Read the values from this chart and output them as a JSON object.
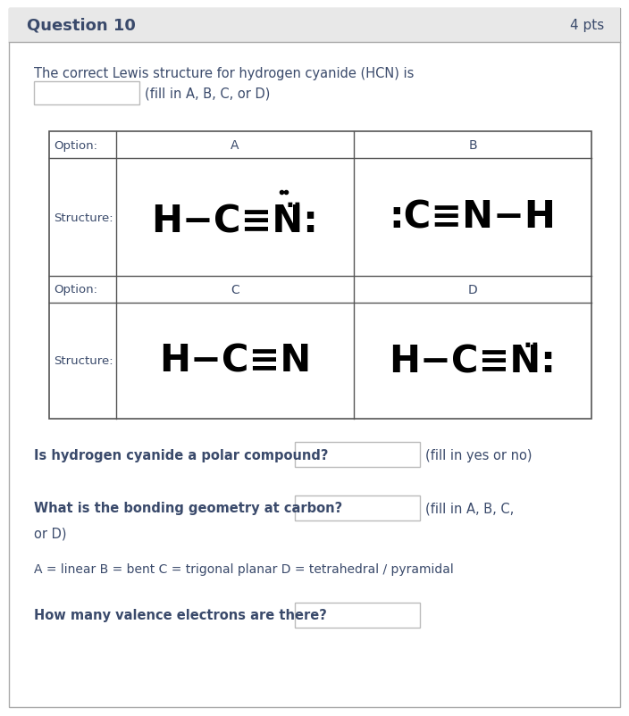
{
  "title": "Question 10",
  "pts": "4 pts",
  "bg_header": "#e8e8e8",
  "bg_white": "#ffffff",
  "text_color": "#3a4a6b",
  "black": "#000000",
  "border_gray": "#999999",
  "border_dark": "#555555",
  "intro_text": "The correct Lewis structure for hydrogen cyanide (HCN) is",
  "fill_hint_1": "(fill in A, B, C, or D)",
  "option_label": "Option:",
  "structure_label": "Structure:",
  "option_A": "A",
  "option_B": "B",
  "option_C": "C",
  "option_D": "D",
  "q1": "Is hydrogen cyanide a polar compound?",
  "q1_hint": "(fill in yes or no)",
  "q2": "What is the bonding geometry at carbon?",
  "q2_hint": "(fill in A, B, C,",
  "q2_hint2": "or D)",
  "q3_label": "A = linear B = bent C = trigonal planar D = tetrahedral / pyramidal",
  "q4": "How many valence electrons are there?"
}
